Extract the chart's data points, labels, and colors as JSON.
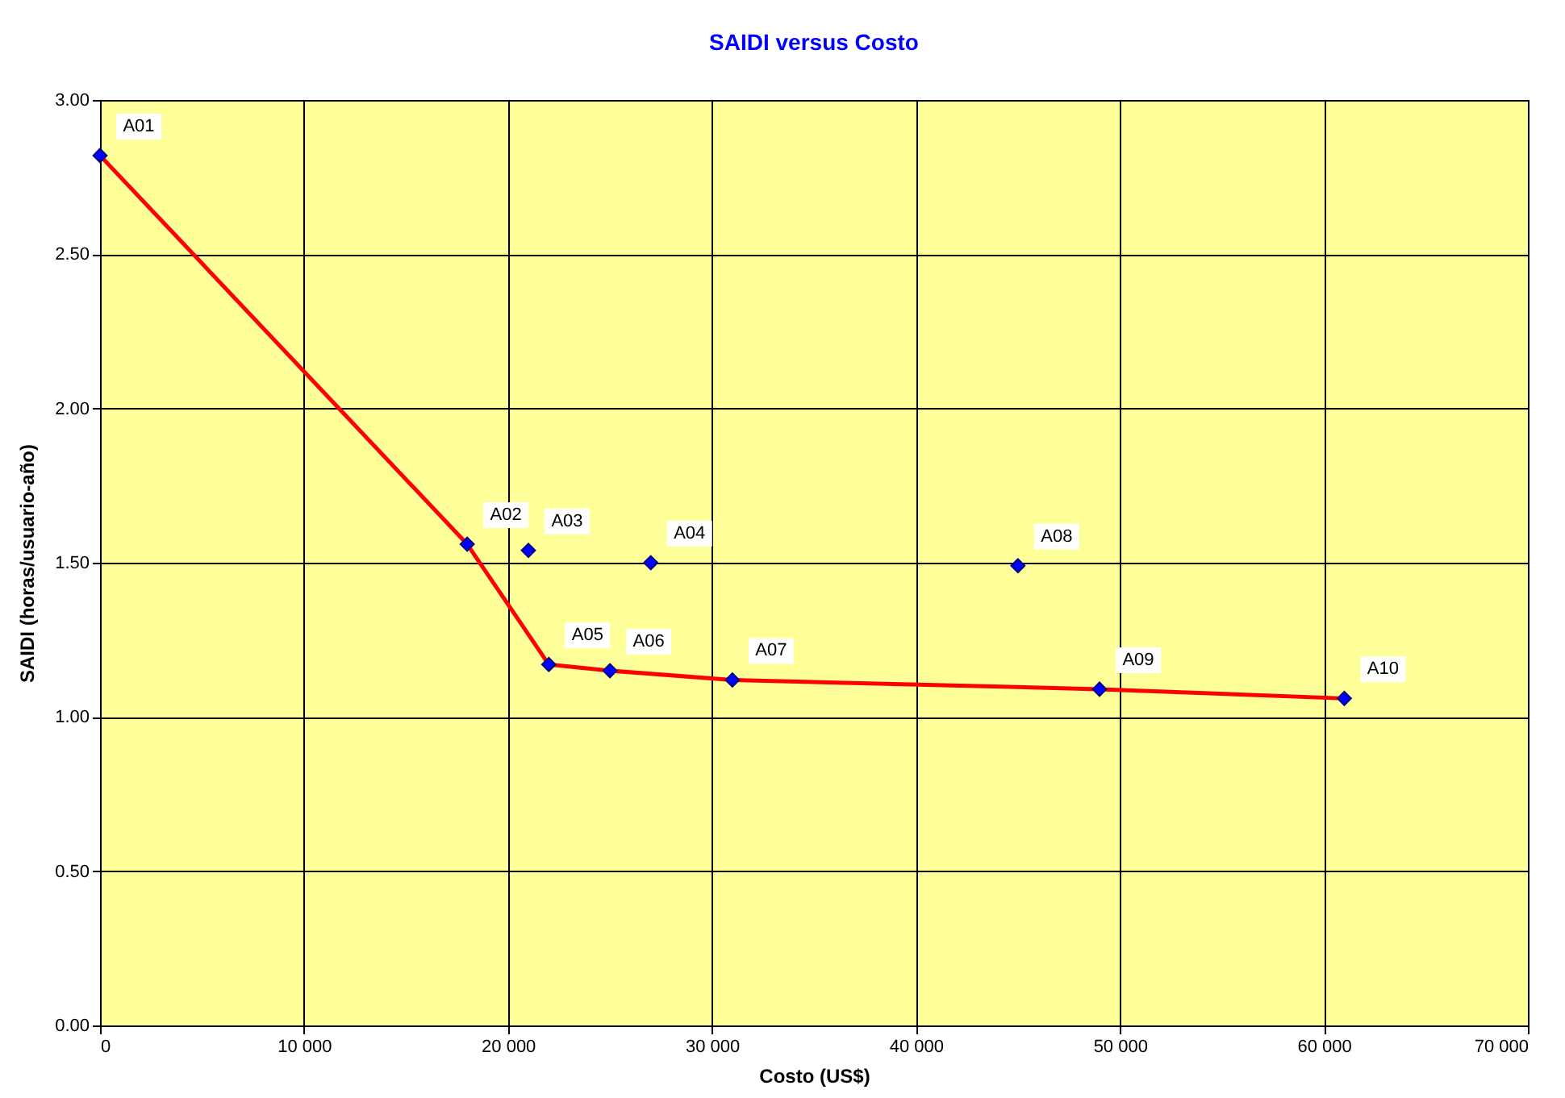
{
  "chart_data": {
    "type": "scatter",
    "title": "SAIDI versus Costo",
    "xlabel": "Costo (US$)",
    "ylabel": "SAIDI (horas/usuario-año)",
    "xlim": [
      0,
      70000
    ],
    "ylim": [
      0,
      3
    ],
    "xticks": [
      0,
      {
        "value": 10000,
        "label": "10 000"
      },
      {
        "value": 20000,
        "label": "20 000"
      },
      {
        "value": 30000,
        "label": "30 000"
      },
      {
        "value": 40000,
        "label": "40 000"
      },
      {
        "value": 50000,
        "label": "50 000"
      },
      {
        "value": 60000,
        "label": "60 000"
      },
      {
        "value": 70000,
        "label": "70 000"
      }
    ],
    "yticks": [
      {
        "value": 0,
        "label": "0.00"
      },
      {
        "value": 0.5,
        "label": "0.50"
      },
      {
        "value": 1,
        "label": "1.00"
      },
      {
        "value": 1.5,
        "label": "1.50"
      },
      {
        "value": 2,
        "label": "2.00"
      },
      {
        "value": 2.5,
        "label": "2.50"
      },
      {
        "value": 3,
        "label": "3.00"
      }
    ],
    "grid": true,
    "series": [
      {
        "type": "line",
        "color": "#ff0000",
        "marker": "none",
        "line_style": "solid",
        "x": [
          0,
          18000,
          22000,
          25000,
          31000,
          49000,
          61000
        ],
        "values": [
          2.82,
          1.56,
          1.17,
          1.15,
          1.12,
          1.09,
          1.06
        ]
      },
      {
        "type": "scatter",
        "color": "#0000ff",
        "marker": "diamond",
        "x": [
          0,
          18000,
          21000,
          27000,
          22000,
          25000,
          31000,
          45000,
          49000,
          61000
        ],
        "values": [
          2.82,
          1.56,
          1.54,
          1.5,
          1.17,
          1.15,
          1.12,
          1.49,
          1.09,
          1.06
        ]
      }
    ],
    "annotations": [
      {
        "text": "A01",
        "x": 0,
        "y": 2.82
      },
      {
        "text": "A02",
        "x": 18000,
        "y": 1.56
      },
      {
        "text": "A03",
        "x": 21000,
        "y": 1.54
      },
      {
        "text": "A04",
        "x": 27000,
        "y": 1.5
      },
      {
        "text": "A05",
        "x": 22000,
        "y": 1.17
      },
      {
        "text": "A06",
        "x": 25000,
        "y": 1.15
      },
      {
        "text": "A07",
        "x": 31000,
        "y": 1.12
      },
      {
        "text": "A08",
        "x": 45000,
        "y": 1.49
      },
      {
        "text": "A09",
        "x": 49000,
        "y": 1.09
      },
      {
        "text": "A10",
        "x": 61000,
        "y": 1.06
      }
    ]
  }
}
